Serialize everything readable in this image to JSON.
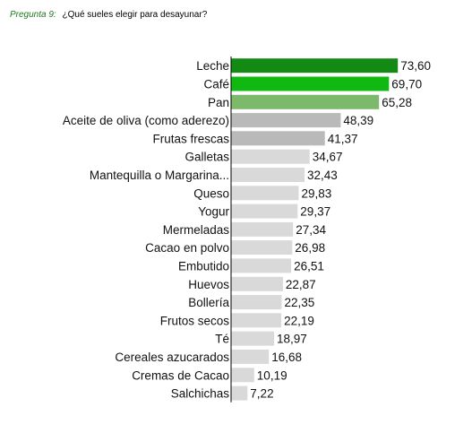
{
  "question": {
    "label": "Pregunta 9:",
    "text": "¿Qué sueles elegir para desayunar?"
  },
  "chart_data": {
    "type": "bar",
    "orientation": "horizontal",
    "categories": [
      "Leche",
      "Café",
      "Pan",
      "Aceite de oliva (como aderezo)",
      "Frutas frescas",
      "Galletas",
      "Mantequilla o Margarina...",
      "Queso",
      "Yogur",
      "Mermeladas",
      "Cacao en polvo",
      "Embutido",
      "Huevos",
      "Bollería",
      "Frutos secos",
      "Té",
      "Cereales azucarados",
      "Cremas de Cacao",
      "Salchichas"
    ],
    "values": [
      73.6,
      69.7,
      65.28,
      48.39,
      41.37,
      34.67,
      32.43,
      29.83,
      29.37,
      27.34,
      26.98,
      26.51,
      22.87,
      22.35,
      22.19,
      18.97,
      16.68,
      10.19,
      7.22
    ],
    "value_labels": [
      "73,60",
      "69,70",
      "65,28",
      "48,39",
      "41,37",
      "34,67",
      "32,43",
      "29,83",
      "29,37",
      "27,34",
      "26,98",
      "26,51",
      "22,87",
      "22,35",
      "22,19",
      "18,97",
      "16,68",
      "10,19",
      "7,22"
    ],
    "colors": [
      "#138a13",
      "#11b811",
      "#7db96a",
      "#b9b9b9",
      "#b9b9b9",
      "#d9d9d9",
      "#d9d9d9",
      "#d9d9d9",
      "#d9d9d9",
      "#d9d9d9",
      "#d9d9d9",
      "#d9d9d9",
      "#d9d9d9",
      "#d9d9d9",
      "#d9d9d9",
      "#d9d9d9",
      "#d9d9d9",
      "#d9d9d9",
      "#d9d9d9"
    ],
    "xlim": [
      0,
      80
    ],
    "grid": false,
    "legend": "none",
    "axis_line": "#000000"
  }
}
